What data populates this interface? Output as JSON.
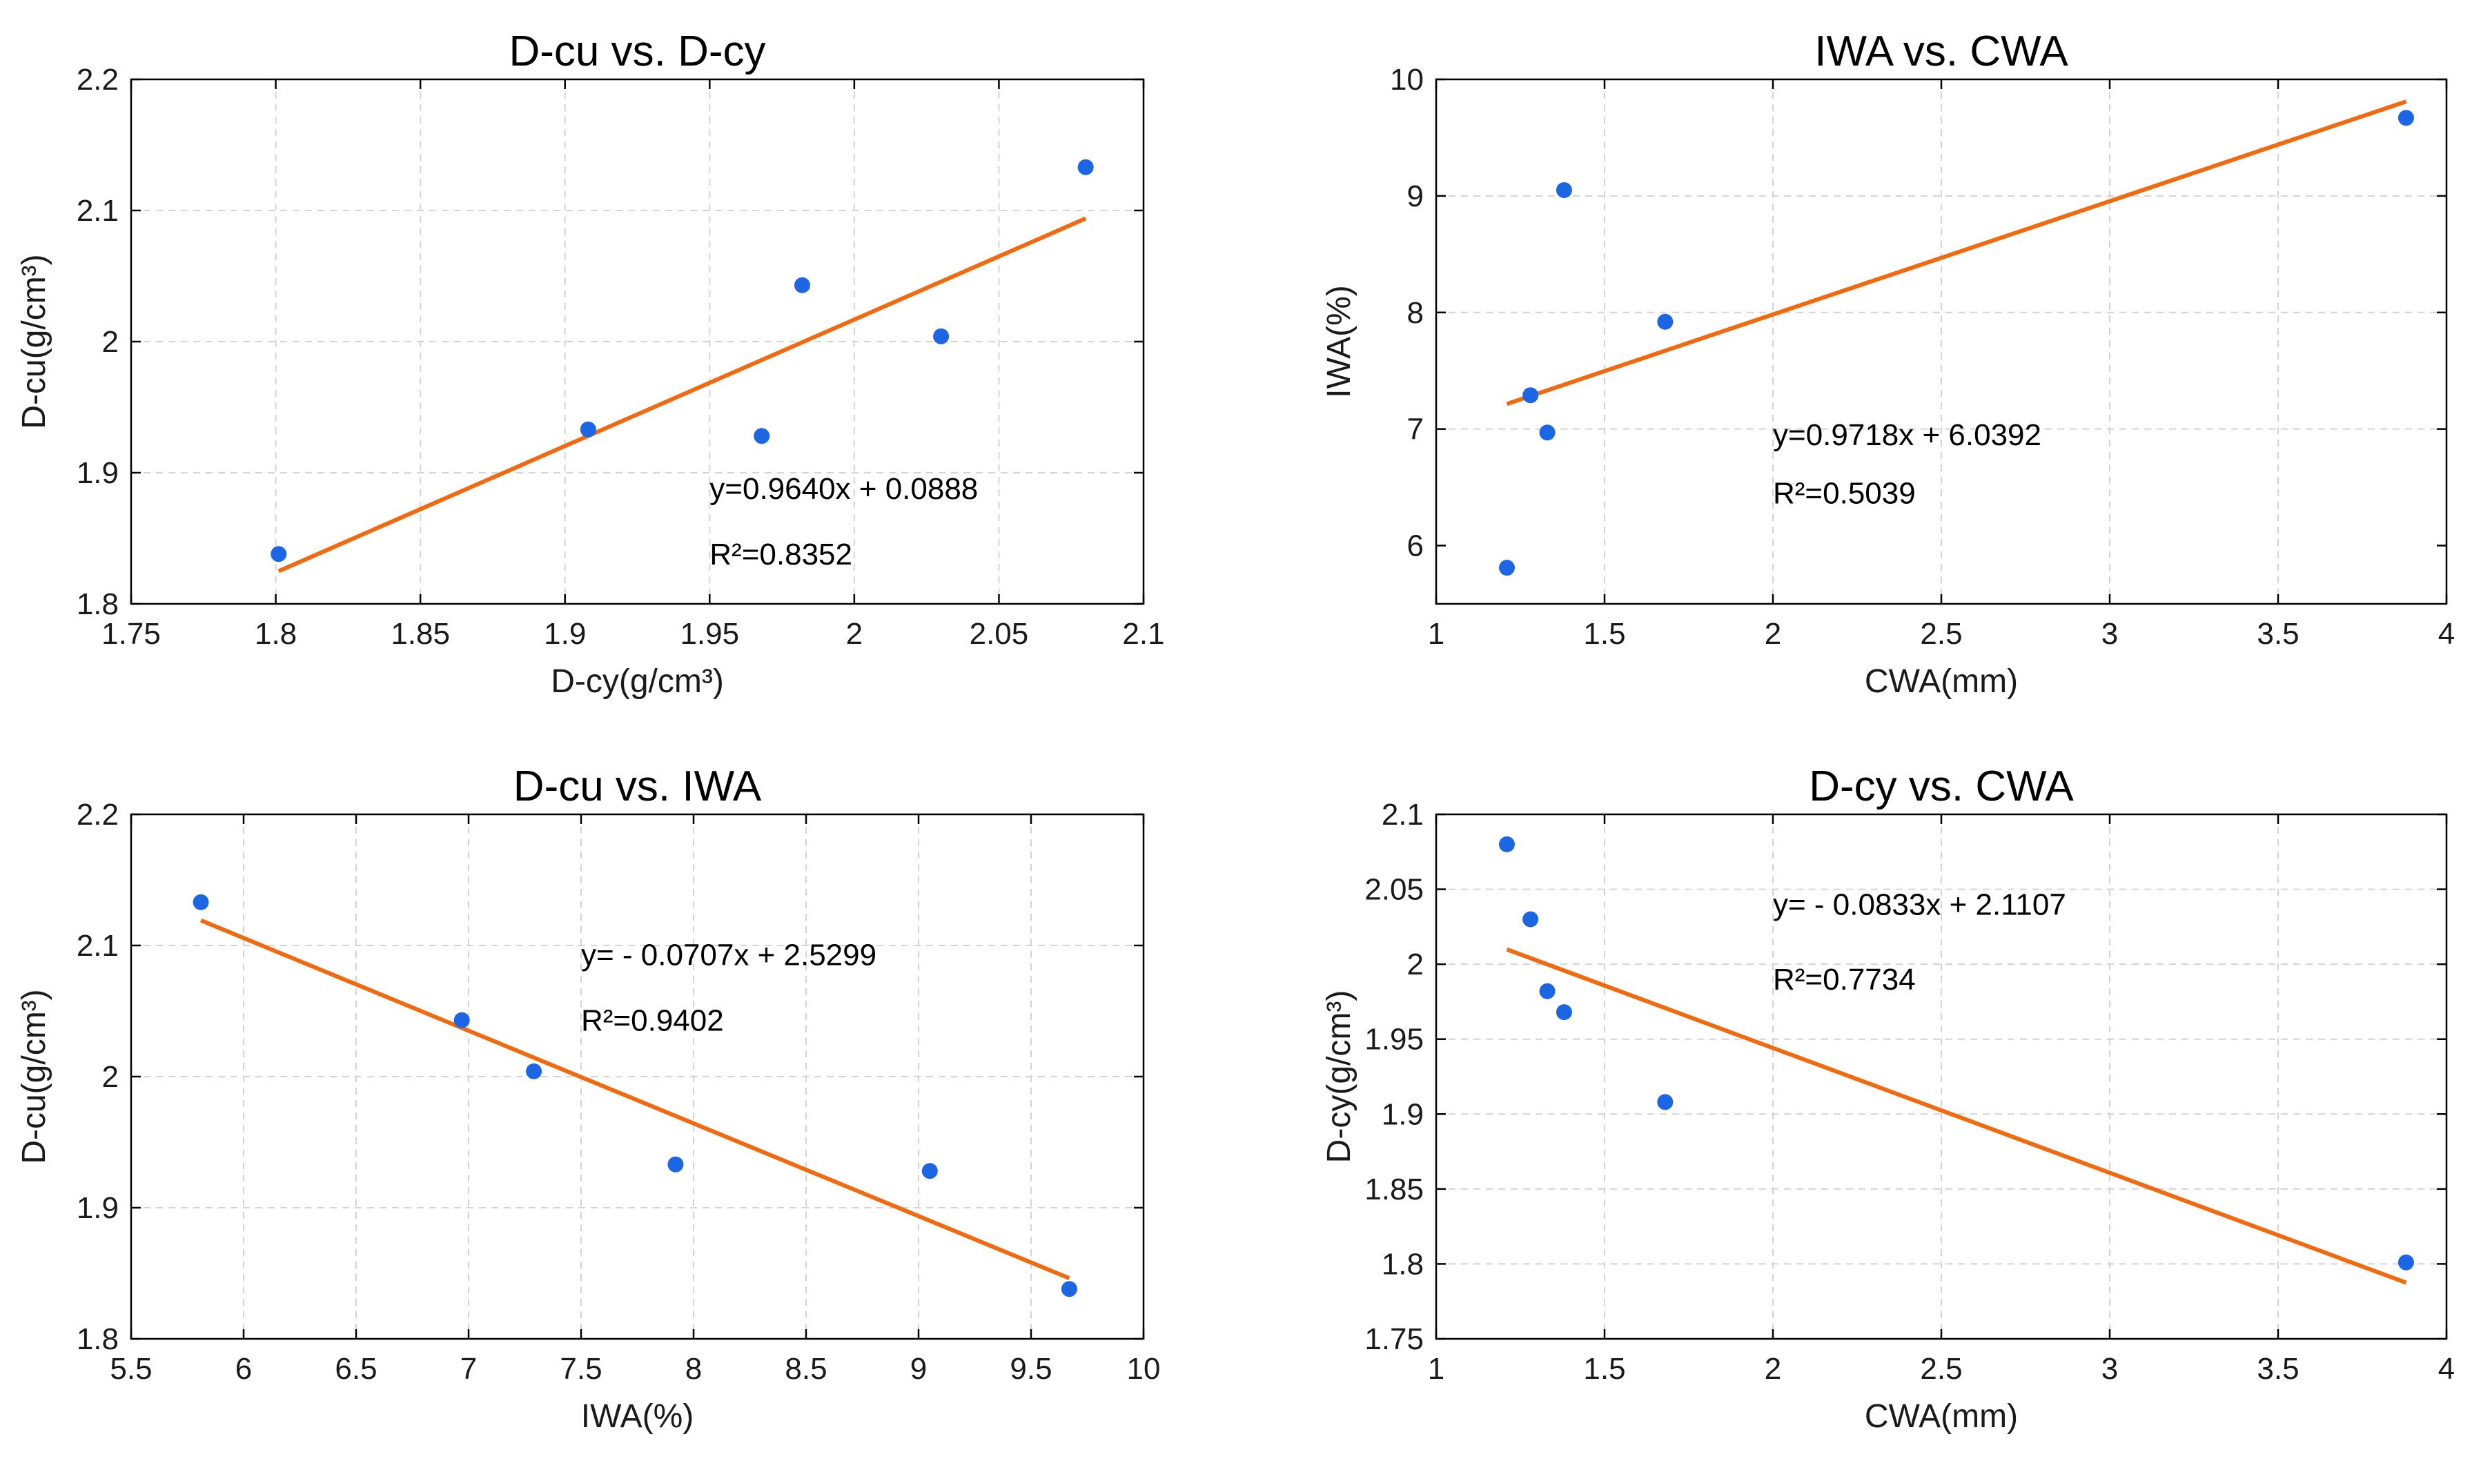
{
  "colors": {
    "point": "#1c65e3",
    "fit_line": "#f26a10",
    "grid": "#d4d4d4",
    "axis": "#000000"
  },
  "chart_data": [
    {
      "type": "scatter",
      "title": "D-cu vs. D-cy",
      "xlabel": "D-cy(g/cm³)",
      "ylabel": "D-cu(g/cm³)",
      "xlim": [
        1.75,
        2.1
      ],
      "ylim": [
        1.8,
        2.2
      ],
      "xticks": [
        1.75,
        1.8,
        1.85,
        1.9,
        1.95,
        2.0,
        2.05,
        2.1
      ],
      "xtick_labels": [
        "1.75",
        "1.8",
        "1.85",
        "1.9",
        "1.95",
        "2",
        "2.05",
        "2.1"
      ],
      "yticks": [
        1.8,
        1.9,
        2.0,
        2.1,
        2.2
      ],
      "ytick_labels": [
        "1.8",
        "1.9",
        "2",
        "2.1",
        "2.2"
      ],
      "grid": true,
      "points": [
        {
          "x": 1.801,
          "y": 1.838
        },
        {
          "x": 1.908,
          "y": 1.933
        },
        {
          "x": 1.968,
          "y": 1.928
        },
        {
          "x": 1.982,
          "y": 2.043
        },
        {
          "x": 2.03,
          "y": 2.004
        },
        {
          "x": 2.08,
          "y": 2.133
        }
      ],
      "fit": {
        "slope": 0.964,
        "intercept": 0.0888,
        "x_from": 1.801,
        "x_to": 2.08
      },
      "equation": "y=0.9640x + 0.0888",
      "r2": "R²=0.8352",
      "annotation_pos": {
        "x": 1.95,
        "y1": 1.888,
        "y2": 1.838
      }
    },
    {
      "type": "scatter",
      "title": "IWA vs. CWA",
      "xlabel": "CWA(mm)",
      "ylabel": "IWA(%)",
      "xlim": [
        1,
        4
      ],
      "ylim": [
        5.5,
        10
      ],
      "xticks": [
        1,
        1.5,
        2,
        2.5,
        3,
        3.5,
        4
      ],
      "xtick_labels": [
        "1",
        "1.5",
        "2",
        "2.5",
        "3",
        "3.5",
        "4"
      ],
      "yticks": [
        6,
        7,
        8,
        9,
        10
      ],
      "ytick_labels": [
        "6",
        "7",
        "8",
        "9",
        "10"
      ],
      "grid": true,
      "points": [
        {
          "x": 1.21,
          "y": 5.81
        },
        {
          "x": 1.28,
          "y": 7.29
        },
        {
          "x": 1.33,
          "y": 6.97
        },
        {
          "x": 1.38,
          "y": 9.05
        },
        {
          "x": 1.68,
          "y": 7.92
        },
        {
          "x": 3.88,
          "y": 9.67
        }
      ],
      "fit": {
        "slope": 0.9718,
        "intercept": 6.0392,
        "x_from": 1.21,
        "x_to": 3.88
      },
      "equation": "y=0.9718x + 6.0392",
      "r2": "R²=0.5039",
      "annotation_pos": {
        "x": 2.0,
        "y1": 6.95,
        "y2": 6.45
      }
    },
    {
      "type": "scatter",
      "title": "D-cu vs. IWA",
      "xlabel": "IWA(%)",
      "ylabel": "D-cu(g/cm³)",
      "xlim": [
        5.5,
        10
      ],
      "ylim": [
        1.8,
        2.2
      ],
      "xticks": [
        5.5,
        6,
        6.5,
        7,
        7.5,
        8,
        8.5,
        9,
        9.5,
        10
      ],
      "xtick_labels": [
        "5.5",
        "6",
        "6.5",
        "7",
        "7.5",
        "8",
        "8.5",
        "9",
        "9.5",
        "10"
      ],
      "yticks": [
        1.8,
        1.9,
        2.0,
        2.1,
        2.2
      ],
      "ytick_labels": [
        "1.8",
        "1.9",
        "2",
        "2.1",
        "2.2"
      ],
      "grid": true,
      "points": [
        {
          "x": 5.81,
          "y": 2.133
        },
        {
          "x": 6.97,
          "y": 2.043
        },
        {
          "x": 7.29,
          "y": 2.004
        },
        {
          "x": 7.92,
          "y": 1.933
        },
        {
          "x": 9.05,
          "y": 1.928
        },
        {
          "x": 9.67,
          "y": 1.838
        }
      ],
      "fit": {
        "slope": -0.0707,
        "intercept": 2.5299,
        "x_from": 5.81,
        "x_to": 9.67
      },
      "equation": "y= - 0.0707x + 2.5299",
      "r2": "R²=0.9402",
      "annotation_pos": {
        "x": 7.5,
        "y1": 2.093,
        "y2": 2.043
      }
    },
    {
      "type": "scatter",
      "title": "D-cy vs. CWA",
      "xlabel": "CWA(mm)",
      "ylabel": "D-cy(g/cm³)",
      "xlim": [
        1,
        4
      ],
      "ylim": [
        1.75,
        2.1
      ],
      "xticks": [
        1,
        1.5,
        2,
        2.5,
        3,
        3.5,
        4
      ],
      "xtick_labels": [
        "1",
        "1.5",
        "2",
        "2.5",
        "3",
        "3.5",
        "4"
      ],
      "yticks": [
        1.75,
        1.8,
        1.85,
        1.9,
        1.95,
        2.0,
        2.05,
        2.1
      ],
      "ytick_labels": [
        "1.75",
        "1.8",
        "1.85",
        "1.9",
        "1.95",
        "2",
        "2.05",
        "2.1"
      ],
      "grid": true,
      "points": [
        {
          "x": 1.21,
          "y": 2.08
        },
        {
          "x": 1.28,
          "y": 2.03
        },
        {
          "x": 1.33,
          "y": 1.982
        },
        {
          "x": 1.38,
          "y": 1.968
        },
        {
          "x": 1.68,
          "y": 1.908
        },
        {
          "x": 3.88,
          "y": 1.801
        }
      ],
      "fit": {
        "slope": -0.0833,
        "intercept": 2.1107,
        "x_from": 1.21,
        "x_to": 3.88
      },
      "equation": "y= - 0.0833x + 2.1107",
      "r2": "R²=0.7734",
      "annotation_pos": {
        "x": 2.0,
        "y1": 2.04,
        "y2": 1.99
      }
    }
  ]
}
